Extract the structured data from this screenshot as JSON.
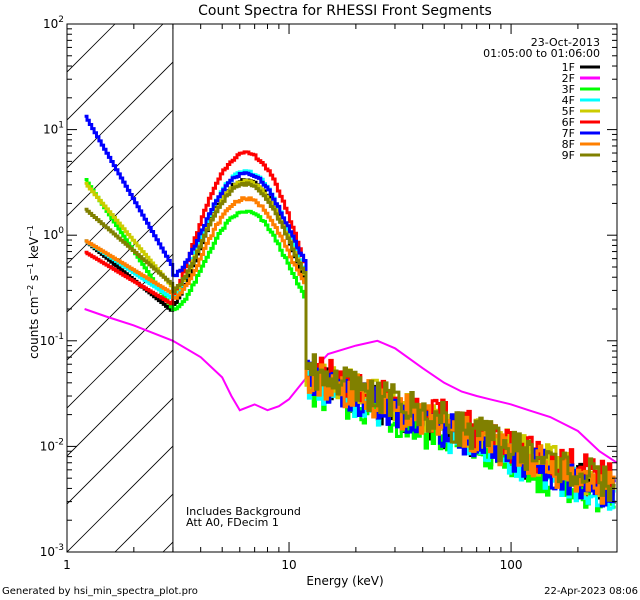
{
  "chart_data": {
    "type": "line",
    "title": "Count Spectra for RHESSI Front Segments",
    "xlabel": "Energy (keV)",
    "ylabel": "counts cm^-2 s^-1 keV^-1",
    "xscale": "log",
    "yscale": "log",
    "xlim": [
      1,
      300
    ],
    "ylim": [
      0.001,
      100
    ],
    "x_tick_labels": [
      {
        "value": 1,
        "label": "1"
      },
      {
        "value": 10,
        "label": "10"
      },
      {
        "value": 100,
        "label": "100"
      }
    ],
    "y_tick_labels": [
      {
        "value": 100,
        "mant": "10",
        "exp": "2"
      },
      {
        "value": 10,
        "mant": "10",
        "exp": "1"
      },
      {
        "value": 1,
        "mant": "10",
        "exp": "0"
      },
      {
        "value": 0.1,
        "mant": "10",
        "exp": "-1"
      },
      {
        "value": 0.01,
        "mant": "10",
        "exp": "-2"
      },
      {
        "value": 0.001,
        "mant": "10",
        "exp": "-3"
      }
    ],
    "hatched_region": [
      1,
      3
    ],
    "date": "23-Oct-2013",
    "time_range": "01:05:00 to 01:06:00",
    "notes": [
      "Includes Background",
      "Att A0, FDecim 1"
    ],
    "series": [
      {
        "name": "1F",
        "color": "#000000",
        "low": 0.9,
        "mid": 0.19,
        "peak": 3.2,
        "tail": 0.03
      },
      {
        "name": "2F",
        "color": "#ff00ff",
        "kind": "background",
        "points": [
          [
            1.2,
            0.2
          ],
          [
            1.5,
            0.17
          ],
          [
            2,
            0.14
          ],
          [
            3,
            0.1
          ],
          [
            4,
            0.07
          ],
          [
            5,
            0.045
          ],
          [
            5.5,
            0.03
          ],
          [
            6,
            0.022
          ],
          [
            7,
            0.025
          ],
          [
            8,
            0.022
          ],
          [
            9,
            0.024
          ],
          [
            10,
            0.028
          ],
          [
            12,
            0.045
          ],
          [
            15,
            0.075
          ],
          [
            20,
            0.09
          ],
          [
            25,
            0.1
          ],
          [
            30,
            0.085
          ],
          [
            40,
            0.055
          ],
          [
            50,
            0.04
          ],
          [
            60,
            0.033
          ],
          [
            70,
            0.03
          ],
          [
            80,
            0.028
          ],
          [
            100,
            0.025
          ],
          [
            120,
            0.022
          ],
          [
            150,
            0.019
          ],
          [
            200,
            0.014
          ],
          [
            250,
            0.009
          ],
          [
            300,
            0.007
          ]
        ]
      },
      {
        "name": "3F",
        "color": "#00ff00",
        "low": 3.5,
        "mid": 0.2,
        "peak": 1.5,
        "tail": 0.025
      },
      {
        "name": "4F",
        "color": "#00ffff",
        "low": 0.9,
        "mid": 0.25,
        "peak": 3.8,
        "tail": 0.028
      },
      {
        "name": "5F",
        "color": "#cccc00",
        "low": 3.2,
        "mid": 0.32,
        "peak": 3.0,
        "tail": 0.035
      },
      {
        "name": "6F",
        "color": "#ff0000",
        "low": 0.7,
        "mid": 0.22,
        "peak": 5.8,
        "tail": 0.038
      },
      {
        "name": "7F",
        "color": "#0000ff",
        "low": 14,
        "mid": 0.5,
        "peak": 3.5,
        "tail": 0.03
      },
      {
        "name": "8F",
        "color": "#ff7f00",
        "low": 0.9,
        "mid": 0.28,
        "peak": 2.0,
        "tail": 0.032
      },
      {
        "name": "9F",
        "color": "#808000",
        "low": 1.8,
        "mid": 0.34,
        "peak": 2.8,
        "tail": 0.036
      }
    ]
  },
  "footer": {
    "left": "Generated by hsi_min_spectra_plot.pro",
    "right": "22-Apr-2023 08:06"
  }
}
